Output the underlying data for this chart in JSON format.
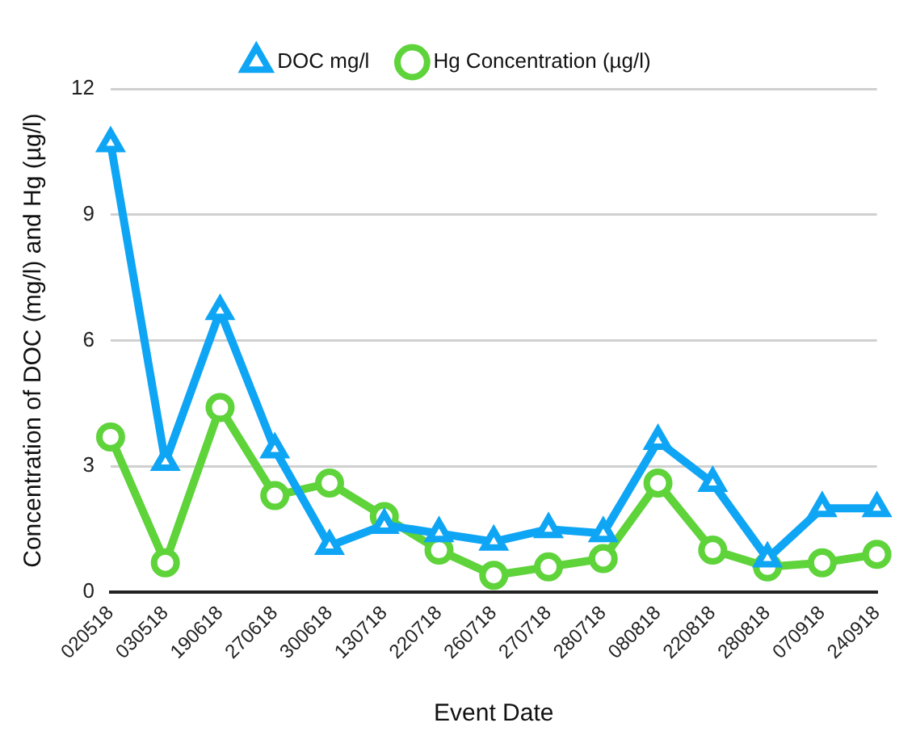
{
  "chart_data": {
    "type": "line",
    "xlabel": "Event Date",
    "ylabel": "Concentration of DOC (mg/l) and Hg (µg/l)",
    "categories": [
      "020518",
      "030518",
      "190618",
      "270618",
      "300618",
      "130718",
      "220718",
      "260718",
      "270718",
      "280718",
      "080818",
      "220818",
      "280818",
      "070918",
      "240918"
    ],
    "series": [
      {
        "name": "DOC mg/l",
        "color": "#0fa5f5",
        "marker": "triangle",
        "values": [
          10.7,
          3.1,
          6.7,
          3.4,
          1.1,
          1.6,
          1.4,
          1.2,
          1.5,
          1.4,
          3.6,
          2.6,
          0.8,
          2.0,
          2.0
        ]
      },
      {
        "name": "Hg Concentration (µg/l)",
        "color": "#5ed33a",
        "marker": "circle",
        "values": [
          3.7,
          0.7,
          4.4,
          2.3,
          2.6,
          1.8,
          1.0,
          0.4,
          0.6,
          0.8,
          2.6,
          1.0,
          0.6,
          0.7,
          0.9
        ]
      }
    ],
    "ylim": [
      0,
      12
    ],
    "yticks": [
      0,
      3,
      6,
      9,
      12
    ],
    "grid": "y",
    "legend": "top"
  }
}
